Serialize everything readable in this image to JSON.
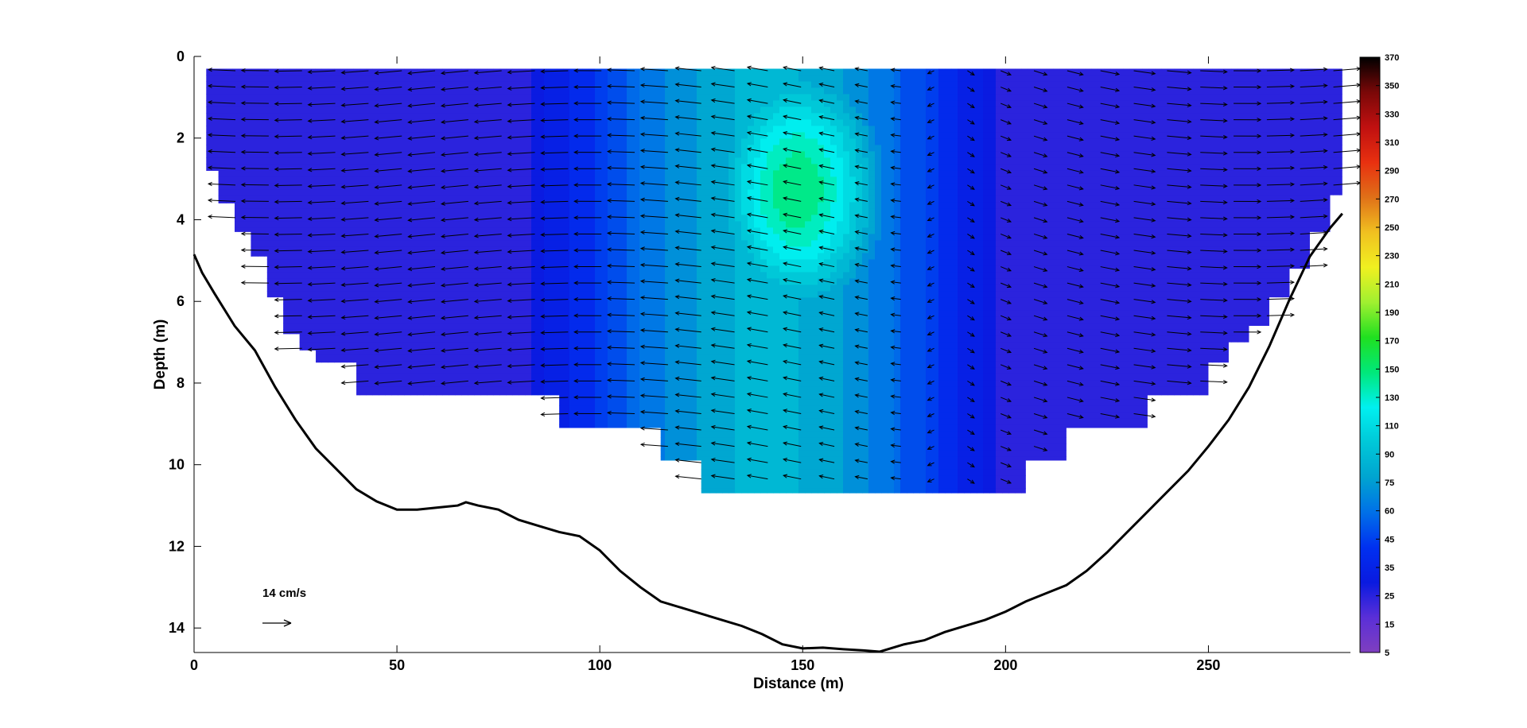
{
  "chart_data": {
    "type": "heatmap",
    "title": "",
    "xlabel": "Distance (m)",
    "ylabel": "Depth (m)",
    "xlim": [
      0,
      285
    ],
    "ylim": [
      14.6,
      0
    ],
    "x_ticks": [
      0,
      50,
      100,
      150,
      200,
      250
    ],
    "y_ticks": [
      0,
      2,
      4,
      6,
      8,
      10,
      12,
      14
    ],
    "grid": false,
    "colorbar": {
      "range": [
        5,
        370
      ],
      "tick_values": [
        5,
        15,
        25,
        35,
        45,
        60,
        75,
        90,
        110,
        130,
        150,
        170,
        190,
        210,
        230,
        250,
        270,
        290,
        310,
        330,
        350,
        370
      ],
      "tick_labels": [
        "5",
        "15",
        "25",
        "35",
        "45",
        "60",
        "75",
        "90",
        "110",
        "130",
        "150",
        "170",
        "190",
        "210",
        "230",
        "250",
        "270",
        "290",
        "310",
        "330",
        "350",
        "370"
      ],
      "colormap": [
        "#7f3fbf",
        "#5a2fd8",
        "#0a1ae0",
        "#0030f0",
        "#0070e8",
        "#00a4d0",
        "#00c8d8",
        "#00f0f0",
        "#00e87a",
        "#20e020",
        "#a0f030",
        "#f0f020",
        "#f0c020",
        "#e07018",
        "#e83010",
        "#c01010",
        "#7a0808",
        "#000000"
      ]
    },
    "velocity_scale": {
      "label": "14 cm/s",
      "value_cm_s": 14
    },
    "bathymetry": {
      "x": [
        0,
        2,
        5,
        10,
        15,
        20,
        25,
        30,
        35,
        40,
        45,
        50,
        55,
        60,
        65,
        67,
        70,
        75,
        80,
        85,
        90,
        95,
        100,
        105,
        110,
        115,
        120,
        125,
        130,
        135,
        140,
        145,
        150,
        155,
        160,
        165,
        169,
        175,
        180,
        185,
        190,
        195,
        200,
        205,
        210,
        215,
        220,
        225,
        230,
        235,
        240,
        245,
        250,
        255,
        260,
        265,
        270,
        275,
        280,
        283
      ],
      "depth": [
        4.85,
        5.3,
        5.8,
        6.6,
        7.2,
        8.1,
        8.9,
        9.6,
        10.1,
        10.6,
        10.9,
        11.1,
        11.1,
        11.05,
        11.0,
        10.92,
        11.0,
        11.1,
        11.35,
        11.5,
        11.65,
        11.75,
        12.1,
        12.6,
        13.0,
        13.35,
        13.5,
        13.65,
        13.8,
        13.95,
        14.15,
        14.4,
        14.5,
        14.48,
        14.52,
        14.55,
        14.58,
        14.4,
        14.3,
        14.1,
        13.95,
        13.8,
        13.6,
        13.35,
        13.15,
        12.95,
        12.6,
        12.15,
        11.65,
        11.15,
        10.65,
        10.15,
        9.55,
        8.9,
        8.1,
        7.1,
        5.95,
        4.9,
        4.2,
        3.85
      ]
    },
    "measurement_profile": {
      "x": [
        0,
        3,
        6,
        10,
        14,
        18,
        22,
        26,
        30,
        34,
        40,
        50,
        60,
        70,
        80,
        85,
        90,
        95,
        100,
        110,
        115,
        120,
        125,
        130,
        135,
        140,
        150,
        160,
        170,
        180,
        190,
        200,
        205,
        210,
        215,
        220,
        225,
        230,
        235,
        240,
        245,
        250,
        255,
        260,
        265,
        270,
        275,
        280,
        283
      ],
      "bottom_depth": [
        0.3,
        2.8,
        3.6,
        4.3,
        4.9,
        5.9,
        6.8,
        7.2,
        7.5,
        7.5,
        8.3,
        8.3,
        8.3,
        8.3,
        8.3,
        8.3,
        9.1,
        9.1,
        9.1,
        9.1,
        9.9,
        9.9,
        10.7,
        10.7,
        10.7,
        10.7,
        10.7,
        10.7,
        10.7,
        10.7,
        10.7,
        10.7,
        9.9,
        9.9,
        9.1,
        9.1,
        9.1,
        9.1,
        8.3,
        8.3,
        8.3,
        7.5,
        7.0,
        6.6,
        5.9,
        5.2,
        4.3,
        3.4,
        2.0
      ]
    },
    "velocity_field": {
      "x_range": [
        0,
        283
      ],
      "depth_range": [
        0.3,
        10.7
      ],
      "description_values": {
        "core_max_x": 148,
        "core_max_depth": 3.2,
        "core_max_value": 175,
        "left_flow_direction": "westward",
        "right_flow_direction": "eastward",
        "divergence_x": 185
      }
    }
  }
}
